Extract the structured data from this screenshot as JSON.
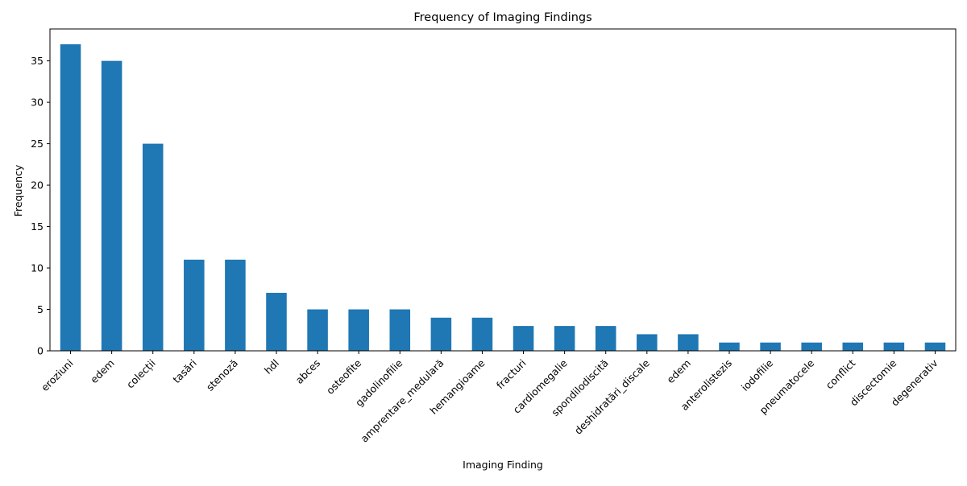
{
  "chart_data": {
    "type": "bar",
    "title": "Frequency of Imaging Findings",
    "xlabel": "Imaging Finding",
    "ylabel": "Frequency",
    "categories": [
      "eroziuni",
      "edem",
      "colecții",
      "tasări",
      "stenoză",
      "hdl",
      "abces",
      "osteofite",
      "gadolinofilie",
      "amprentare_medulară",
      "hemangioame",
      "fracturi",
      "cardiomegalie",
      "spondilodiscită",
      "deshidratări_discale",
      "edem",
      "anterolistezis",
      "iodofilie",
      "pneumatocele",
      "conflict",
      "discectomie",
      "degenerativ"
    ],
    "values": [
      37,
      35,
      25,
      11,
      11,
      7,
      5,
      5,
      5,
      4,
      4,
      3,
      3,
      3,
      2,
      2,
      1,
      1,
      1,
      1,
      1,
      1
    ],
    "ylim": [
      0,
      38.85
    ],
    "yticks": [
      "0",
      "5",
      "10",
      "15",
      "20",
      "25",
      "30",
      "35"
    ],
    "grid": false,
    "legend": "none",
    "bar_color": "#1f77b4"
  }
}
